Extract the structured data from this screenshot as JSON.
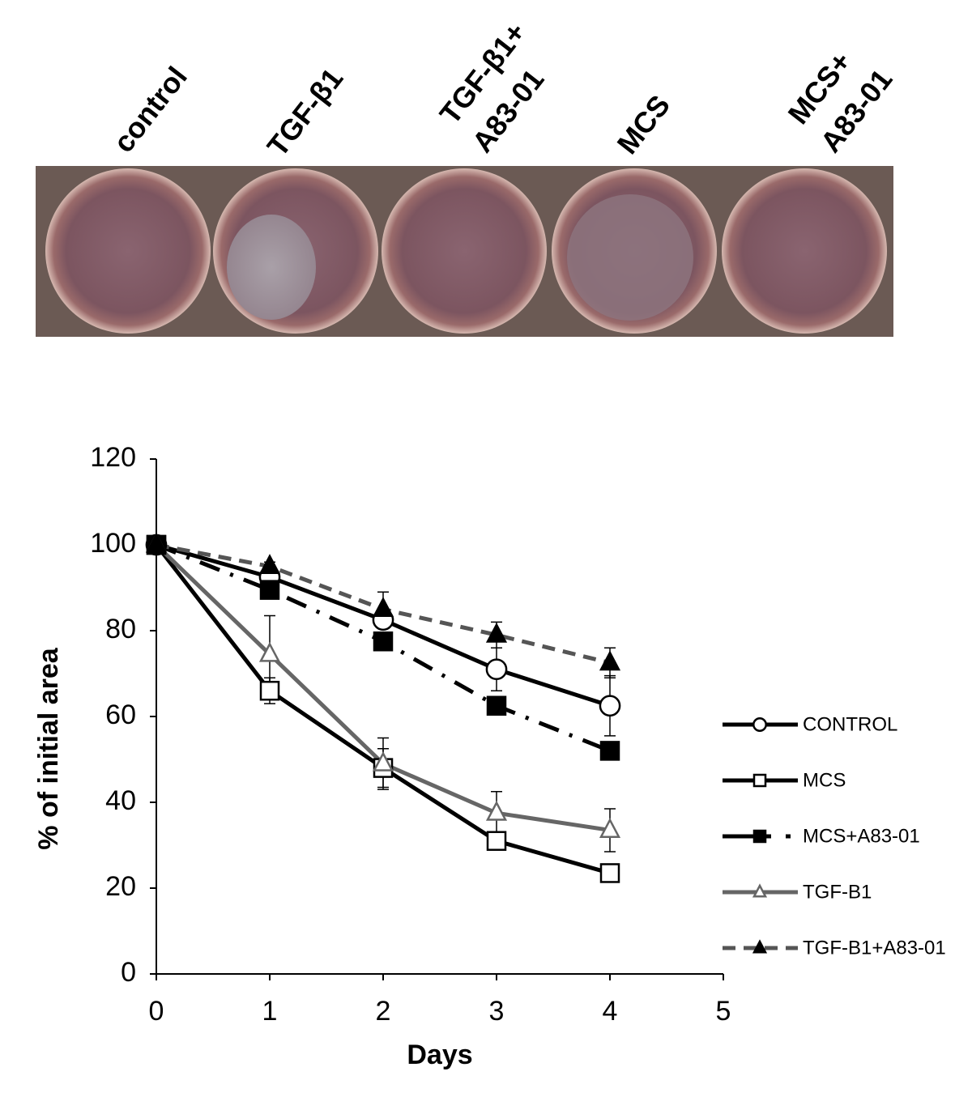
{
  "photo": {
    "labels": [
      [
        "control"
      ],
      [
        "TGF-β1"
      ],
      [
        "TGF-β1+",
        "A83-01"
      ],
      [
        "MCS"
      ],
      [
        "MCS+",
        "A83-01"
      ]
    ]
  },
  "chart_data": {
    "type": "line",
    "x_label": "Days",
    "y_label": "% of initial area",
    "x": [
      0,
      1,
      2,
      3,
      4
    ],
    "xlim": [
      0,
      5
    ],
    "xticks": [
      0,
      1,
      2,
      3,
      4,
      5
    ],
    "ylim": [
      0,
      120
    ],
    "yticks": [
      0,
      20,
      40,
      60,
      80,
      100,
      120
    ],
    "grid": false,
    "legend": "right",
    "series": [
      {
        "name": "CONTROL",
        "color": "#000000",
        "dash": "solid",
        "marker": "circle",
        "filled": false,
        "values": [
          100,
          92.5,
          82.5,
          71,
          62.5
        ],
        "errors": [
          null,
          1,
          1,
          5,
          7
        ]
      },
      {
        "name": "MCS",
        "color": "#000000",
        "dash": "solid",
        "marker": "square",
        "filled": false,
        "values": [
          100,
          66,
          48,
          31,
          23.5
        ],
        "errors": [
          null,
          3,
          4.5,
          1.5,
          1
        ]
      },
      {
        "name": "MCS+A83-01",
        "color": "#000000",
        "dash": "dashdot",
        "marker": "square",
        "filled": true,
        "values": [
          100,
          89.5,
          77.5,
          62.5,
          52
        ],
        "errors": [
          null,
          1,
          1,
          1,
          1
        ]
      },
      {
        "name": "TGF-B1",
        "color": "#666666",
        "dash": "solid",
        "marker": "triangle",
        "filled": false,
        "values": [
          100,
          74.5,
          49,
          37.5,
          33.5
        ],
        "errors": [
          null,
          9,
          6,
          5,
          5
        ]
      },
      {
        "name": "TGF-B1+A83-01",
        "color": "#666666",
        "dash": "dashed",
        "marker": "triangle",
        "filled": true,
        "values": [
          100,
          95,
          85,
          79,
          72.5
        ],
        "errors": [
          null,
          1,
          4,
          3,
          3.5
        ]
      }
    ]
  }
}
